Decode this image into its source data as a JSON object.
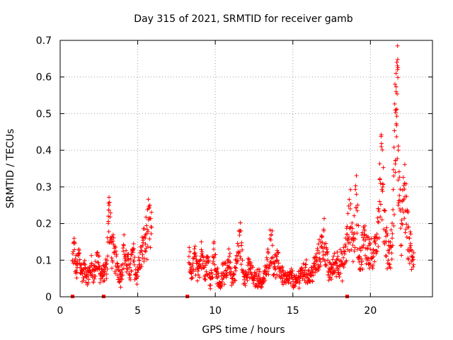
{
  "chart_data": {
    "type": "scatter",
    "title": "Day 315 of 2021, SRMTID for receiver gamb",
    "xlabel": "GPS time / hours",
    "ylabel": "SRMTID / TECUs",
    "xlim": [
      0,
      24
    ],
    "ylim": [
      0,
      0.7
    ],
    "xticks": [
      0,
      5,
      10,
      15,
      20
    ],
    "xtick_labels": [
      "0",
      "5",
      "10",
      "15",
      "20"
    ],
    "yticks": [
      0,
      0.1,
      0.2,
      0.3,
      0.4,
      0.5,
      0.6,
      0.7
    ],
    "ytick_labels": [
      "0",
      "0.1",
      "0.2",
      "0.3",
      "0.4",
      "0.5",
      "0.6",
      "0.7"
    ],
    "grid": true,
    "marker": "+",
    "color": "#ff0000",
    "series_envelope": {
      "description_x": [
        0.8,
        1.0,
        1.5,
        2.0,
        2.5,
        3.0,
        3.2,
        3.5,
        4.0,
        4.5,
        5.0,
        5.5,
        6.0
      ],
      "points": [
        [
          0.8,
          0.1
        ],
        [
          0.9,
          0.15
        ],
        [
          1.0,
          0.09
        ],
        [
          1.1,
          0.08
        ],
        [
          1.2,
          0.13
        ],
        [
          1.4,
          0.07
        ],
        [
          1.6,
          0.08
        ],
        [
          1.8,
          0.06
        ],
        [
          2.0,
          0.09
        ],
        [
          2.2,
          0.07
        ],
        [
          2.4,
          0.12
        ],
        [
          2.6,
          0.06
        ],
        [
          2.8,
          0.07
        ],
        [
          3.0,
          0.09
        ],
        [
          3.1,
          0.22
        ],
        [
          3.15,
          0.25
        ],
        [
          3.3,
          0.15
        ],
        [
          3.5,
          0.12
        ],
        [
          3.7,
          0.09
        ],
        [
          3.9,
          0.06
        ],
        [
          4.1,
          0.14
        ],
        [
          4.3,
          0.1
        ],
        [
          4.5,
          0.08
        ],
        [
          4.7,
          0.13
        ],
        [
          4.9,
          0.06
        ],
        [
          5.1,
          0.1
        ],
        [
          5.3,
          0.14
        ],
        [
          5.5,
          0.17
        ],
        [
          5.7,
          0.21
        ],
        [
          5.9,
          0.19
        ],
        [
          8.3,
          0.11
        ],
        [
          8.5,
          0.07
        ],
        [
          8.7,
          0.12
        ],
        [
          8.9,
          0.06
        ],
        [
          9.1,
          0.15
        ],
        [
          9.3,
          0.08
        ],
        [
          9.5,
          0.11
        ],
        [
          9.7,
          0.05
        ],
        [
          9.9,
          0.13
        ],
        [
          10.1,
          0.07
        ],
        [
          10.3,
          0.03
        ],
        [
          10.5,
          0.09
        ],
        [
          10.7,
          0.06
        ],
        [
          10.9,
          0.11
        ],
        [
          11.1,
          0.05
        ],
        [
          11.3,
          0.08
        ],
        [
          11.6,
          0.18
        ],
        [
          11.8,
          0.07
        ],
        [
          12.0,
          0.06
        ],
        [
          12.2,
          0.09
        ],
        [
          12.5,
          0.05
        ],
        [
          12.8,
          0.06
        ],
        [
          13.0,
          0.04
        ],
        [
          13.3,
          0.08
        ],
        [
          13.6,
          0.17
        ],
        [
          13.8,
          0.09
        ],
        [
          14.0,
          0.1
        ],
        [
          14.3,
          0.07
        ],
        [
          14.6,
          0.05
        ],
        [
          14.9,
          0.06
        ],
        [
          15.2,
          0.04
        ],
        [
          15.5,
          0.07
        ],
        [
          15.8,
          0.08
        ],
        [
          16.1,
          0.06
        ],
        [
          16.4,
          0.09
        ],
        [
          16.7,
          0.12
        ],
        [
          17.0,
          0.18
        ],
        [
          17.3,
          0.07
        ],
        [
          17.6,
          0.09
        ],
        [
          17.9,
          0.11
        ],
        [
          18.2,
          0.09
        ],
        [
          18.5,
          0.17
        ],
        [
          18.7,
          0.24
        ],
        [
          18.9,
          0.16
        ],
        [
          19.1,
          0.28
        ],
        [
          19.3,
          0.11
        ],
        [
          19.6,
          0.17
        ],
        [
          19.9,
          0.14
        ],
        [
          20.2,
          0.11
        ],
        [
          20.5,
          0.24
        ],
        [
          20.6,
          0.32
        ],
        [
          20.7,
          0.41
        ],
        [
          20.8,
          0.3
        ],
        [
          21.0,
          0.18
        ],
        [
          21.2,
          0.12
        ],
        [
          21.4,
          0.16
        ],
        [
          21.5,
          0.33
        ],
        [
          21.6,
          0.51
        ],
        [
          21.65,
          0.56
        ],
        [
          21.7,
          0.64
        ],
        [
          21.75,
          0.62
        ],
        [
          21.8,
          0.4
        ],
        [
          21.9,
          0.24
        ],
        [
          22.0,
          0.2
        ],
        [
          22.2,
          0.31
        ],
        [
          22.4,
          0.19
        ],
        [
          22.5,
          0.16
        ],
        [
          22.6,
          0.14
        ],
        [
          22.7,
          0.1
        ],
        [
          22.8,
          0.12
        ]
      ]
    },
    "zero_markers_x": [
      0.8,
      2.8,
      8.2,
      18.5
    ]
  }
}
